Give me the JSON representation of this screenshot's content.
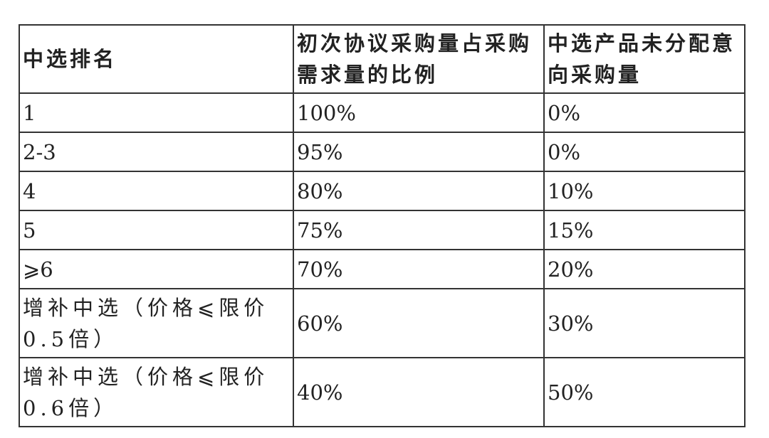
{
  "table": {
    "headers": [
      "中选排名",
      "初次协议采购量占采购需求量的比例",
      "中选产品未分配意向采购量"
    ],
    "rows": [
      [
        "1",
        "100%",
        "0%"
      ],
      [
        "2-3",
        "95%",
        "0%"
      ],
      [
        "4",
        "80%",
        "10%"
      ],
      [
        "5",
        "75%",
        "15%"
      ],
      [
        "⩾6",
        "70%",
        "20%"
      ],
      [
        "增补中选（价格⩽限价0.5倍）",
        "60%",
        "30%"
      ],
      [
        "增补中选（价格⩽限价0.6倍）",
        "40%",
        "50%"
      ]
    ]
  }
}
